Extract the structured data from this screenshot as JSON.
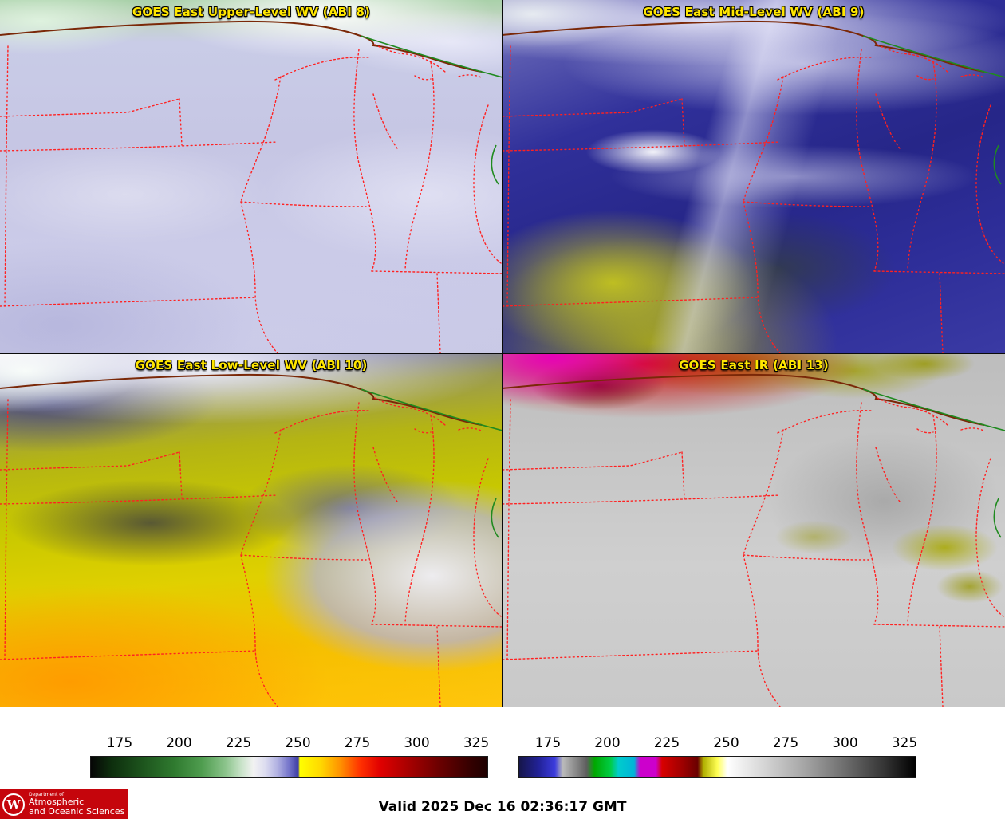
{
  "colors": {
    "title_yellow": "#ffe600",
    "boundary_red": "#ff2121",
    "border_brown": "#7a2808",
    "river_green": "#1f8a1f",
    "logo_red": "#c5050c",
    "footer_text": "#000000",
    "page_bg": "#ffffff"
  },
  "panels": [
    {
      "title": "GOES East Upper-Level WV (ABI 8)"
    },
    {
      "title": "GOES East Mid-Level WV (ABI 9)"
    },
    {
      "title": "GOES East Low-Level WV (ABI 10)"
    },
    {
      "title": "GOES East IR (ABI 13)"
    }
  ],
  "colorbars": {
    "left": {
      "name": "water-vapor-enhancement-scale",
      "ticks": [
        "175",
        "200",
        "225",
        "250",
        "275",
        "300",
        "325"
      ],
      "stops": [
        [
          0,
          "#060606"
        ],
        [
          5,
          "#0d2d0d"
        ],
        [
          13,
          "#1d541d"
        ],
        [
          21,
          "#2f7a2f"
        ],
        [
          28,
          "#4f9d4f"
        ],
        [
          34,
          "#8cc48c"
        ],
        [
          38,
          "#c9e3c9"
        ],
        [
          41,
          "#f2f2f2"
        ],
        [
          44,
          "#dcdcf0"
        ],
        [
          47,
          "#b2b2e2"
        ],
        [
          50,
          "#7474ca"
        ],
        [
          52.3,
          "#3c3ca4"
        ],
        [
          52.7,
          "#ffff00"
        ],
        [
          58,
          "#ffd800"
        ],
        [
          63,
          "#ff9000"
        ],
        [
          68,
          "#ff3000"
        ],
        [
          73,
          "#e00000"
        ],
        [
          80,
          "#a80000"
        ],
        [
          88,
          "#6a0000"
        ],
        [
          96,
          "#330000"
        ],
        [
          100,
          "#1d0000"
        ]
      ]
    },
    "right": {
      "name": "ir-enhancement-scale",
      "ticks": [
        "175",
        "200",
        "225",
        "250",
        "275",
        "300",
        "325"
      ],
      "stops": [
        [
          0,
          "#16164a"
        ],
        [
          5,
          "#222299"
        ],
        [
          9,
          "#3c3cdd"
        ],
        [
          11,
          "#bbbbbb"
        ],
        [
          14,
          "#8d8d8d"
        ],
        [
          17,
          "#5e5e5e"
        ],
        [
          19,
          "#00a800"
        ],
        [
          23,
          "#00cc44"
        ],
        [
          25,
          "#00cccc"
        ],
        [
          29,
          "#00b4d8"
        ],
        [
          30.5,
          "#cc00cc"
        ],
        [
          34.5,
          "#cc00cc"
        ],
        [
          36,
          "#d80000"
        ],
        [
          41,
          "#a00000"
        ],
        [
          45,
          "#6a0000"
        ],
        [
          46.5,
          "#b0b000"
        ],
        [
          50,
          "#ffff55"
        ],
        [
          52.5,
          "#ffffff"
        ],
        [
          62,
          "#d4d4d4"
        ],
        [
          72,
          "#a5a5a5"
        ],
        [
          82,
          "#6e6e6e"
        ],
        [
          92,
          "#353535"
        ],
        [
          100,
          "#000000"
        ]
      ]
    }
  },
  "footer": {
    "valid_time": "Valid 2025 Dec 16 02:36:17 GMT",
    "logo": {
      "crest_letter": "W",
      "dept_line": "Department of",
      "name_line1": "Atmospheric",
      "name_line2": "and Oceanic Sciences"
    }
  }
}
